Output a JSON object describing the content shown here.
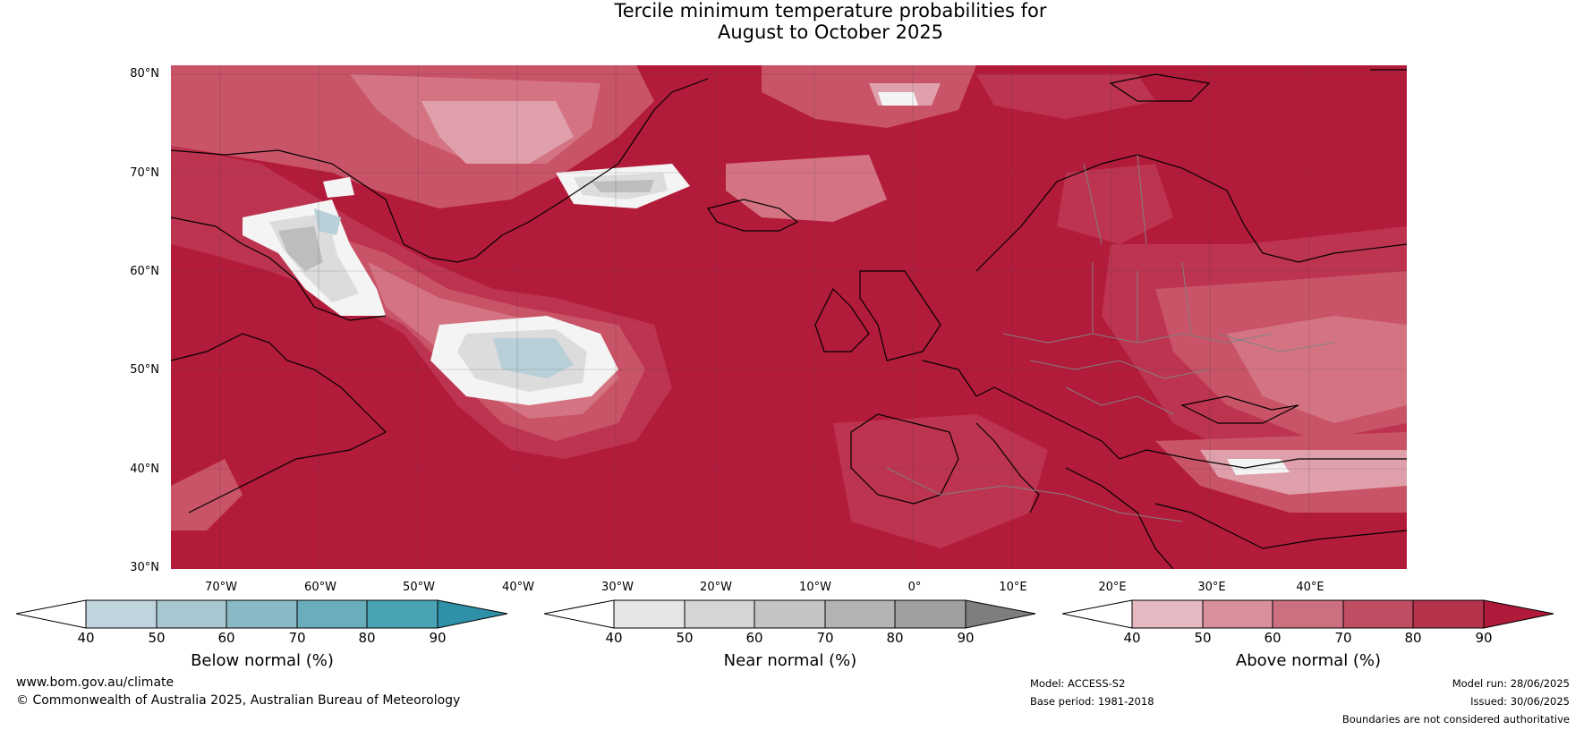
{
  "title": {
    "line1": "Tercile minimum temperature probabilities for",
    "line2": "August to October 2025"
  },
  "axes": {
    "lat_labels": [
      "80°N",
      "70°N",
      "60°N",
      "50°N",
      "40°N",
      "30°N"
    ],
    "lon_labels": [
      "70°W",
      "60°W",
      "50°W",
      "40°W",
      "30°W",
      "20°W",
      "10°W",
      "0°",
      "10°E",
      "20°E",
      "30°E",
      "40°E"
    ]
  },
  "colorbars": [
    {
      "title": "Below normal (%)",
      "ticks": [
        "40",
        "50",
        "60",
        "70",
        "80",
        "90"
      ],
      "colors": [
        "#ffffff",
        "#bfd4dc",
        "#a8c7d0",
        "#8ab9c6",
        "#6aaebe",
        "#4aa3b5",
        "#2f91a8"
      ]
    },
    {
      "title": "Near normal (%)",
      "ticks": [
        "40",
        "50",
        "60",
        "70",
        "80",
        "90"
      ],
      "colors": [
        "#ffffff",
        "#e6e6e6",
        "#d5d5d5",
        "#c4c4c4",
        "#b3b3b3",
        "#a0a0a0",
        "#7e7e7e"
      ]
    },
    {
      "title": "Above normal (%)",
      "ticks": [
        "40",
        "50",
        "60",
        "70",
        "80",
        "90"
      ],
      "colors": [
        "#ffffff",
        "#e6b8c1",
        "#d98f9c",
        "#cc7080",
        "#bf4e63",
        "#b5344c",
        "#b01a3a"
      ]
    }
  ],
  "footer": {
    "url": "www.bom.gov.au/climate",
    "copyright": "© Commonwealth of Australia 2025, Australian Bureau of Meteorology",
    "model": "Model: ACCESS-S2",
    "base_period": "Base period: 1981-2018",
    "model_run": "Model run: 28/06/2025",
    "issued": "Issued: 30/06/2025",
    "disclaimer": "Boundaries are not considered authoritative"
  },
  "map_colors": {
    "ocean_high": "#b31b3a",
    "above_80": "#bd3450",
    "above_70": "#c95367",
    "above_60": "#d47483",
    "above_50": "#dfa0ab",
    "near_white": "#f4f4f4",
    "near_light": "#dcdcdc",
    "near_mid": "#bdbdbd",
    "below_light": "#b9d0d8",
    "coast": "#000000",
    "border": "#808080"
  }
}
